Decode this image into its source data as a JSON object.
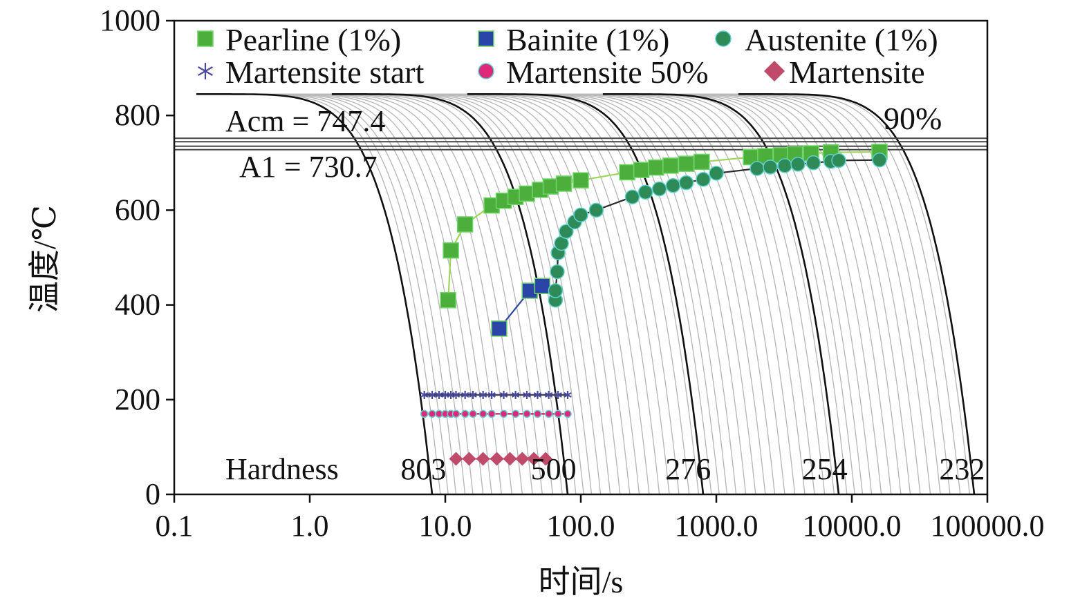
{
  "chart_data": {
    "type": "scatter",
    "title": "",
    "xlabel": "时间/s",
    "ylabel": "温度/℃",
    "x_scale": "log",
    "xlim": [
      0.1,
      100000
    ],
    "ylim": [
      0,
      1000
    ],
    "x_ticks": [
      0.1,
      1,
      10,
      100,
      1000,
      10000,
      100000
    ],
    "x_tick_labels": [
      "0.1",
      "1.0",
      "10.0",
      "100.0",
      "1000.0",
      "10000.0",
      "100000.0"
    ],
    "y_ticks": [
      0,
      200,
      400,
      600,
      800,
      1000
    ],
    "y_tick_labels": [
      "0",
      "200",
      "400",
      "600",
      "800",
      "1000"
    ],
    "grid": false,
    "legend_position": "top",
    "legend": [
      {
        "label": "Pearline (1%)",
        "marker": "square",
        "color": "#4caf3c"
      },
      {
        "label": "Bainite (1%)",
        "marker": "square",
        "color": "#2a44a8"
      },
      {
        "label": "Austenite (1%)",
        "marker": "circle",
        "color": "#2e8b57"
      },
      {
        "label": "Martensite start",
        "marker": "asterisk",
        "color": "#4a4a9c"
      },
      {
        "label": "Martensite 50%",
        "marker": "circle",
        "color": "#e0287a"
      },
      {
        "label": "Martensite 90%",
        "marker": "diamond",
        "color": "#c04a6a"
      }
    ],
    "annotations": {
      "acm": {
        "label": "Acm = 747.4",
        "value": 747.4
      },
      "a1": {
        "label": "A1 = 730.7",
        "value": 730.7
      },
      "hardness_title": "Hardness",
      "hardness_values": [
        {
          "label": "803",
          "x": 6.9
        },
        {
          "label": "500",
          "x": 63
        },
        {
          "label": "276",
          "x": 620
        },
        {
          "label": "254",
          "x": 6300
        },
        {
          "label": "232",
          "x": 65000
        }
      ]
    },
    "cooling_curve_start_temp": 845,
    "cooling_curves_major_t_end": [
      8.0,
      80,
      800,
      8000,
      80000
    ],
    "cooling_curves_minor_t_end": [
      9.2,
      10.5,
      12,
      14,
      16,
      19,
      22,
      26,
      31,
      37,
      44,
      52,
      62,
      73,
      92,
      105,
      120,
      140,
      165,
      195,
      230,
      270,
      320,
      380,
      450,
      530,
      630,
      740,
      920,
      1050,
      1200,
      1400,
      1650,
      1950,
      2300,
      2700,
      3200,
      3800,
      4500,
      5300,
      6300,
      7400,
      9200,
      10500,
      12000,
      14000,
      16500,
      19500,
      23000,
      27000,
      32000,
      38000,
      45000,
      53000,
      63000,
      74000
    ],
    "series": [
      {
        "name": "Pearline (1%)",
        "x": [
          10.5,
          11,
          14,
          22,
          27,
          33,
          40,
          50,
          60,
          75,
          100,
          220,
          280,
          360,
          460,
          600,
          780,
          1800,
          2300,
          3000,
          3800,
          5000,
          7000,
          16000
        ],
        "y": [
          410,
          515,
          570,
          610,
          620,
          628,
          635,
          643,
          650,
          656,
          663,
          680,
          685,
          690,
          694,
          698,
          702,
          712,
          714,
          716,
          718,
          720,
          722,
          723
        ]
      },
      {
        "name": "Bainite (1%)",
        "x": [
          25,
          42,
          52
        ],
        "y": [
          350,
          430,
          440
        ]
      },
      {
        "name": "Austenite (1%)",
        "x": [
          65,
          65,
          67,
          68,
          72,
          78,
          90,
          100,
          130,
          240,
          300,
          380,
          480,
          600,
          800,
          1000,
          2000,
          2500,
          3200,
          4000,
          5200,
          7000,
          8000,
          16000
        ],
        "y": [
          410,
          430,
          470,
          510,
          530,
          555,
          575,
          590,
          600,
          628,
          638,
          645,
          652,
          658,
          665,
          678,
          688,
          691,
          694,
          697,
          700,
          703,
          705,
          706
        ]
      },
      {
        "name": "Martensite start",
        "x": [
          7,
          8,
          9,
          10,
          11,
          12,
          14,
          16,
          19,
          22,
          27,
          33,
          40,
          48,
          58,
          68,
          80
        ],
        "y": [
          210,
          210,
          210,
          210,
          210,
          210,
          210,
          210,
          210,
          210,
          210,
          210,
          210,
          210,
          210,
          210,
          210
        ]
      },
      {
        "name": "Martensite 50%",
        "x": [
          7,
          8,
          9,
          10,
          11,
          12,
          14,
          16,
          19,
          22,
          27,
          33,
          40,
          48,
          58,
          68,
          80
        ],
        "y": [
          170,
          170,
          170,
          170,
          170,
          170,
          170,
          170,
          170,
          170,
          170,
          170,
          170,
          170,
          170,
          170,
          170
        ]
      },
      {
        "name": "Martensite 90%",
        "x": [
          12,
          15,
          19,
          24,
          30,
          37,
          45,
          55
        ],
        "y": [
          75,
          75,
          75,
          75,
          75,
          75,
          75,
          75
        ]
      }
    ]
  }
}
